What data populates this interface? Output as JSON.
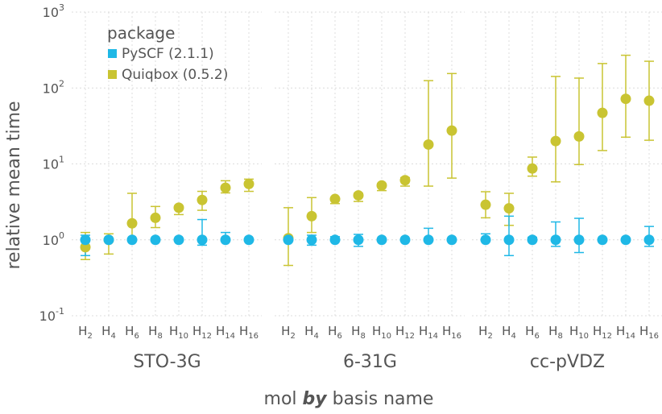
{
  "chart_data": {
    "type": "scatter",
    "ylabel": "relative mean time",
    "xlabel": {
      "pre": "mol ",
      "by": "by",
      "post": " basis name"
    },
    "yscale": "log10",
    "ylim_exponents": [
      -1,
      3
    ],
    "y_ticks": [
      {
        "base": "10",
        "exp": "-1"
      },
      {
        "base": "10",
        "exp": "0"
      },
      {
        "base": "10",
        "exp": "1"
      },
      {
        "base": "10",
        "exp": "2"
      },
      {
        "base": "10",
        "exp": "3"
      }
    ],
    "grid": true,
    "legend": {
      "title": "package",
      "placement": "top-left",
      "entries": [
        {
          "label": "PySCF (2.1.1)",
          "color": "#1fb8e6"
        },
        {
          "label": "Quiqbox (0.5.2)",
          "color": "#c9c432"
        }
      ]
    },
    "categories": [
      {
        "base": "H",
        "sub": "2"
      },
      {
        "base": "H",
        "sub": "4"
      },
      {
        "base": "H",
        "sub": "6"
      },
      {
        "base": "H",
        "sub": "8"
      },
      {
        "base": "H",
        "sub": "10"
      },
      {
        "base": "H",
        "sub": "12"
      },
      {
        "base": "H",
        "sub": "14"
      },
      {
        "base": "H",
        "sub": "16"
      }
    ],
    "panels": [
      {
        "label": "STO-3G",
        "series": [
          {
            "color": "#1fb8e6",
            "values": [
              1,
              1,
              1,
              1,
              1,
              1,
              1,
              1
            ],
            "lower": [
              0.62,
              0.98,
              0.98,
              0.96,
              0.98,
              0.85,
              0.98,
              0.98
            ],
            "upper": [
              1.15,
              1.03,
              1.03,
              1.04,
              1.03,
              1.85,
              1.25,
              1.03
            ]
          },
          {
            "color": "#c9c432",
            "values": [
              0.8,
              1.0,
              1.65,
              1.95,
              2.65,
              3.35,
              4.85,
              5.45
            ],
            "lower": [
              0.55,
              0.65,
              1.05,
              1.45,
              2.15,
              2.45,
              4.15,
              4.35
            ],
            "upper": [
              1.25,
              1.2,
              4.1,
              2.75,
              2.8,
              4.35,
              6.0,
              6.3
            ]
          }
        ]
      },
      {
        "label": "6-31G",
        "series": [
          {
            "color": "#1fb8e6",
            "values": [
              1,
              1,
              1,
              1,
              1,
              1,
              1,
              1
            ],
            "lower": [
              0.97,
              0.85,
              0.96,
              0.82,
              0.98,
              0.98,
              0.98,
              0.98
            ],
            "upper": [
              1.03,
              1.15,
              1.1,
              1.18,
              1.02,
              1.02,
              1.42,
              1.02
            ]
          },
          {
            "color": "#c9c432",
            "values": [
              1.05,
              2.05,
              3.45,
              3.85,
              5.2,
              6.1,
              18.0,
              27.5
            ],
            "lower": [
              0.46,
              1.25,
              3.0,
              3.2,
              4.45,
              5.1,
              5.1,
              6.5
            ],
            "upper": [
              2.65,
              3.6,
              3.55,
              4.1,
              5.5,
              6.6,
              125.0,
              155.0
            ]
          }
        ]
      },
      {
        "label": "cc-pVDZ",
        "series": [
          {
            "color": "#1fb8e6",
            "values": [
              1,
              1,
              1,
              1,
              1,
              1,
              1,
              1
            ],
            "lower": [
              0.98,
              0.62,
              0.96,
              0.82,
              0.68,
              0.98,
              0.98,
              0.82
            ],
            "upper": [
              1.2,
              2.05,
              1.08,
              1.72,
              1.92,
              1.03,
              1.03,
              1.5
            ]
          },
          {
            "color": "#c9c432",
            "values": [
              2.9,
              2.6,
              8.7,
              20.0,
              23.0,
              47.0,
              72.0,
              68.0
            ],
            "lower": [
              1.95,
              1.55,
              6.9,
              5.8,
              9.8,
              15.0,
              22.5,
              20.5
            ],
            "upper": [
              4.3,
              4.1,
              12.3,
              142.0,
              135.0,
              210.0,
              270.0,
              225.0
            ]
          }
        ]
      }
    ]
  }
}
